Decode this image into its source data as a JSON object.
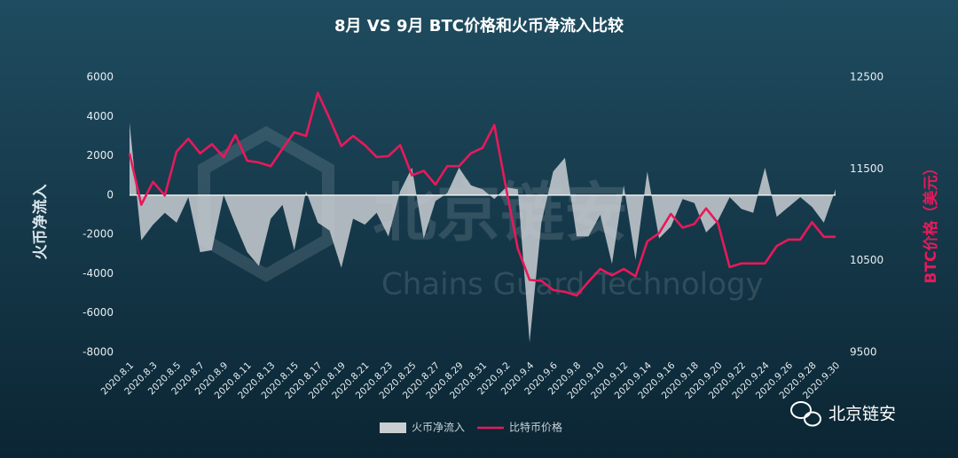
{
  "chart_data": {
    "type": "line",
    "title": "8月 VS 9月 BTC价格和火币净流入比较",
    "y_label": "火币净流入",
    "y2_label": "BTC价格（美元）",
    "annotations": [
      "北京链安",
      "Chains Guard Technology",
      "北京链安"
    ],
    "categories": [
      "2020.8.1",
      null,
      "2020.8.3",
      null,
      "2020.8.5",
      null,
      "2020.8.7",
      null,
      "2020.8.9",
      null,
      "2020.8.11",
      null,
      "2020.8.13",
      null,
      "2020.8.15",
      null,
      "2020.8.17",
      null,
      "2020.8.19",
      null,
      "2020.8.21",
      null,
      "2020.8.23",
      null,
      "2020.8.25",
      null,
      "2020.8.27",
      null,
      "2020.8.29",
      null,
      "2020.8.31",
      null,
      "2020.9.2",
      null,
      "2020.9.4",
      null,
      "2020.9.6",
      null,
      "2020.9.8",
      null,
      "2020.9.10",
      null,
      "2020.9.12",
      null,
      "2020.9.14",
      null,
      "2020.9.16",
      null,
      "2020.9.18",
      null,
      "2020.9.20",
      null,
      "2020.9.22",
      null,
      "2020.9.24",
      null,
      "2020.9.26",
      null,
      "2020.9.28",
      null,
      "2020.9.30"
    ],
    "series": [
      {
        "name": "火币净流入",
        "type": "area",
        "axis": "y",
        "color": "#c9ced2",
        "values": [
          3700,
          -2300,
          -1500,
          -900,
          -1400,
          -100,
          -2900,
          -2800,
          0,
          -1500,
          -2900,
          -3600,
          -1200,
          -500,
          -2800,
          200,
          -1400,
          -1800,
          -3700,
          -1200,
          -1500,
          -900,
          -2100,
          200,
          1400,
          -2200,
          -300,
          100,
          1400,
          500,
          300,
          -200,
          400,
          300,
          -7500,
          -1400,
          1200,
          1900,
          -2100,
          -2100,
          -1000,
          -3500,
          500,
          -3300,
          1200,
          -2200,
          -1600,
          -200,
          -400,
          -1900,
          -1300,
          -100,
          -700,
          -900,
          1400,
          -1100,
          -600,
          -100,
          -600,
          -1400,
          300
        ]
      },
      {
        "name": "比特币价格",
        "type": "line",
        "axis": "y2",
        "color": "#e8195a",
        "values": [
          11670,
          11110,
          11360,
          11210,
          11690,
          11830,
          11670,
          11770,
          11630,
          11870,
          11590,
          11570,
          11530,
          11720,
          11900,
          11860,
          12330,
          12050,
          11750,
          11860,
          11760,
          11630,
          11640,
          11760,
          11430,
          11480,
          11330,
          11530,
          11530,
          11670,
          11730,
          11980,
          11290,
          10630,
          10290,
          10280,
          10180,
          10160,
          10120,
          10270,
          10410,
          10340,
          10410,
          10330,
          10710,
          10800,
          11010,
          10860,
          10900,
          11070,
          10910,
          10430,
          10470,
          10470,
          10470,
          10660,
          10730,
          10730,
          10920,
          10760,
          10760
        ]
      }
    ],
    "ylim": [
      -8000,
      6000
    ],
    "yticks": [
      6000,
      4000,
      2000,
      0,
      -2000,
      -4000,
      -6000,
      -8000
    ],
    "y2lim": [
      9500,
      12500
    ],
    "y2ticks": [
      12500,
      11500,
      10500,
      9500
    ],
    "grid": false,
    "legend": "bottom"
  }
}
